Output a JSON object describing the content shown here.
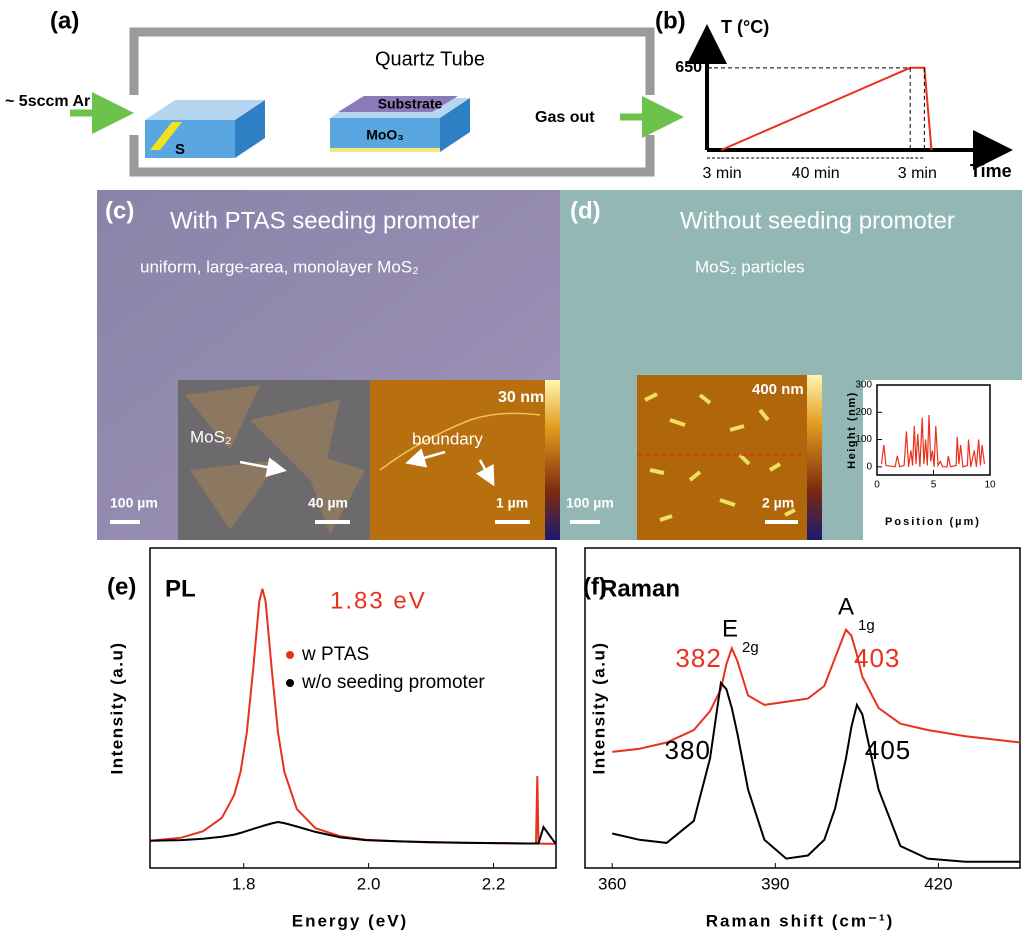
{
  "panel_labels": [
    "(a)",
    "(b)",
    "(c)",
    "(d)",
    "(e)",
    "(f)"
  ],
  "schematic": {
    "tube": "Quartz Tube",
    "gas_in": "~ 5sccm Ar",
    "gas_out": "Gas out",
    "sulfur": "S",
    "substrate": "Substrate",
    "moo3": "MoO₃"
  },
  "images": {
    "c_title": "With PTAS seeding promoter",
    "c_caption": "uniform, large-area, monolayer MoS₂",
    "c_flake": "MoS₂",
    "c_scale": "100 µm",
    "c_inset_scale": "40 µm",
    "c_boundary": "boundary",
    "c_afm_range": "30 nm",
    "c_afm_scale": "1 µm",
    "d_title": "Without seeding promoter",
    "d_caption": "MoS₂ particles",
    "d_scale": "100 µm",
    "d_afm_range": "400 nm",
    "d_afm_scale": "2 µm"
  },
  "chart_data": [
    {
      "type": "line",
      "ylabel": "T (°C)",
      "xlabel": "Time",
      "x": [
        3,
        43,
        46,
        47.5
      ],
      "values": [
        0,
        650,
        650,
        0
      ],
      "color": "#e8321e",
      "xlim": [
        0,
        62
      ],
      "ylim": [
        0,
        870
      ],
      "yticks": [
        650
      ],
      "interval_labels": [
        "3 min",
        "40 min",
        "3 min"
      ]
    },
    {
      "type": "line",
      "xlabel": "Position (µm)",
      "ylabel": "Height (nm)",
      "x": [
        0.4,
        0.6,
        0.8,
        1.6,
        1.8,
        2.0,
        2.4,
        2.6,
        2.8,
        3.0,
        3.15,
        3.3,
        3.45,
        3.6,
        3.8,
        4.0,
        4.15,
        4.3,
        4.45,
        4.6,
        4.75,
        4.9,
        5.05,
        5.2,
        5.4,
        5.6,
        5.8,
        6.2,
        6.3,
        6.5,
        7.0,
        7.1,
        7.25,
        7.4,
        7.6,
        8.0,
        8.1,
        8.3,
        8.6,
        8.8,
        9.0,
        9.15,
        9.3,
        9.5
      ],
      "values": [
        10,
        80,
        5,
        0,
        40,
        0,
        5,
        130,
        0,
        60,
        5,
        150,
        10,
        120,
        0,
        180,
        10,
        100,
        5,
        190,
        20,
        60,
        0,
        150,
        5,
        20,
        0,
        0,
        40,
        0,
        5,
        110,
        10,
        80,
        0,
        5,
        100,
        0,
        60,
        0,
        100,
        5,
        80,
        10
      ],
      "color": "#e8321e",
      "xlim": [
        0,
        10
      ],
      "ylim": [
        -30,
        300
      ],
      "xticks": [
        0,
        5,
        10
      ],
      "yticks": [
        0,
        100,
        200,
        300
      ]
    },
    {
      "type": "line",
      "panel_title": "PL",
      "peak_label": "1.83 eV",
      "xlabel": "Energy (eV)",
      "ylabel": "Intensity (a.u)",
      "x": [
        1.65,
        1.7,
        1.735,
        1.765,
        1.785,
        1.795,
        1.805,
        1.815,
        1.825,
        1.83,
        1.835,
        1.845,
        1.855,
        1.865,
        1.885,
        1.915,
        1.955,
        1.995,
        2.05,
        2.1,
        2.15,
        2.2,
        2.25,
        2.268,
        2.27,
        2.272,
        2.28,
        2.3
      ],
      "series": [
        {
          "name": "w PTAS",
          "color": "#e8321e",
          "values": [
            18.0,
            18.9,
            20.8,
            24.7,
            31.5,
            38.3,
            49.8,
            68.2,
            88.3,
            92,
            88.3,
            68.2,
            49.8,
            38.3,
            27.3,
            21.7,
            19.3,
            18.3,
            17.8,
            17.5,
            17.4,
            17.3,
            17.2,
            17.2,
            37,
            17.2,
            17.1,
            17.1
          ]
        },
        {
          "name": "w/o seeding promoter",
          "color": "#000000",
          "values": [
            18,
            18.2,
            18.6,
            19.2,
            19.8,
            20.3,
            20.9,
            21.5,
            22,
            22.3,
            22.6,
            23.1,
            23.5,
            23.2,
            22.2,
            20.6,
            19,
            18.2,
            17.8,
            17.6,
            17.4,
            17.3,
            17.2,
            17.2,
            17.2,
            17.2,
            22,
            17
          ]
        }
      ],
      "xlim": [
        1.65,
        2.3
      ],
      "ylim": [
        10,
        104
      ],
      "xticks": [
        1.8,
        {
          "value": 2,
          "label": "2.0"
        },
        2.2
      ]
    },
    {
      "type": "line",
      "panel_title": "Raman",
      "modes": [
        "E",
        "2g",
        "A",
        "1g"
      ],
      "xlabel": "Raman shift (cm⁻¹)",
      "ylabel": "Intensity (a.u)",
      "x": [
        360,
        365,
        370,
        375,
        378,
        380,
        381,
        382,
        383,
        385,
        388,
        392,
        396,
        399,
        401,
        403,
        404,
        405,
        406,
        409,
        413,
        418,
        425,
        435
      ],
      "series": [
        {
          "color": "#e8321e",
          "values": [
            42,
            43,
            45,
            49,
            55,
            62,
            70,
            75,
            71,
            60,
            57,
            58,
            59,
            63,
            72,
            81,
            79,
            73,
            66,
            56,
            51,
            49,
            47,
            45
          ]
        },
        {
          "color": "#000000",
          "values": [
            16,
            14,
            13,
            20,
            40,
            64,
            62,
            56,
            48,
            30,
            14,
            8,
            9,
            14,
            24,
            40,
            50,
            57,
            54,
            30,
            12,
            8,
            7,
            7
          ]
        }
      ],
      "peak_labels": [
        [
          382,
          403
        ],
        [
          380,
          405
        ]
      ],
      "xlim": [
        355,
        435
      ],
      "ylim": [
        5,
        107
      ],
      "xticks": [
        360,
        390,
        420
      ]
    }
  ]
}
